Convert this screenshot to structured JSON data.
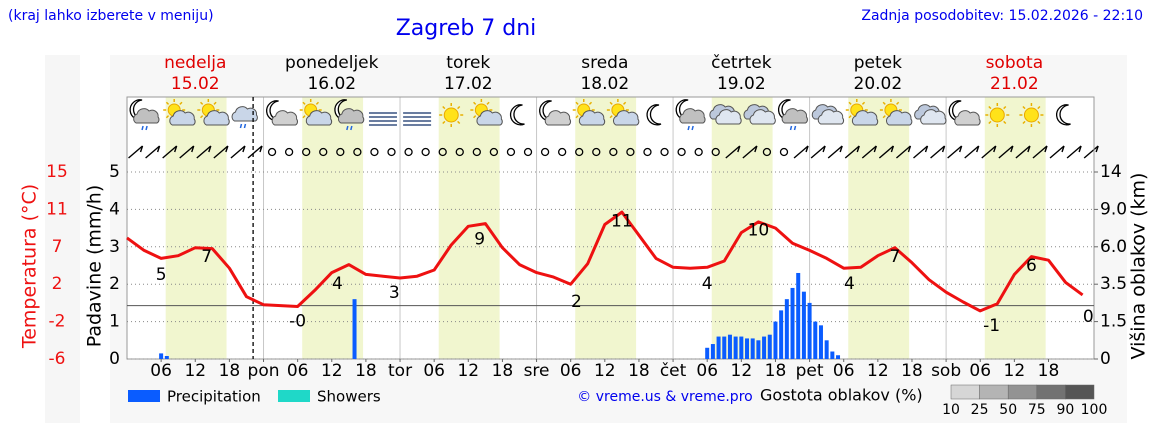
{
  "chart_data": {
    "type": "meteogram",
    "title": "Zagreb 7 dni",
    "note": "(kraj lahko izberete v meniju)",
    "updated": "Zadnja posodobitev: 15.02.2026 - 22:10",
    "credit": "© vreme.us & vreme.pro",
    "days": [
      {
        "name": "nedelja",
        "date": "15.02",
        "color": "#e00000"
      },
      {
        "name": "ponedeljek",
        "date": "16.02",
        "color": "#000000"
      },
      {
        "name": "torek",
        "date": "17.02",
        "color": "#000000"
      },
      {
        "name": "sreda",
        "date": "18.02",
        "color": "#000000"
      },
      {
        "name": "četrtek",
        "date": "19.02",
        "color": "#000000"
      },
      {
        "name": "petek",
        "date": "20.02",
        "color": "#000000"
      },
      {
        "name": "sobota",
        "date": "21.02",
        "color": "#e00000"
      }
    ],
    "xlim": [
      0,
      170
    ],
    "xticks": [
      {
        "value": 6,
        "label": "06"
      },
      {
        "value": 12,
        "label": "12"
      },
      {
        "value": 18,
        "label": "18"
      },
      {
        "value": 24,
        "label": "pon"
      },
      {
        "value": 30,
        "label": "06"
      },
      {
        "value": 36,
        "label": "12"
      },
      {
        "value": 42,
        "label": "18"
      },
      {
        "value": 48,
        "label": "tor"
      },
      {
        "value": 54,
        "label": "06"
      },
      {
        "value": 60,
        "label": "12"
      },
      {
        "value": 66,
        "label": "18"
      },
      {
        "value": 72,
        "label": "sre"
      },
      {
        "value": 78,
        "label": "06"
      },
      {
        "value": 84,
        "label": "12"
      },
      {
        "value": 90,
        "label": "18"
      },
      {
        "value": 96,
        "label": "čet"
      },
      {
        "value": 102,
        "label": "06"
      },
      {
        "value": 108,
        "label": "12"
      },
      {
        "value": 114,
        "label": "18"
      },
      {
        "value": 120,
        "label": "pet"
      },
      {
        "value": 126,
        "label": "06"
      },
      {
        "value": 132,
        "label": "12"
      },
      {
        "value": 138,
        "label": "18"
      },
      {
        "value": 144,
        "label": "sob"
      },
      {
        "value": 150,
        "label": "06"
      },
      {
        "value": 156,
        "label": "12"
      },
      {
        "value": 162,
        "label": "18"
      }
    ],
    "ylabel": "Padavine (mm/h)",
    "ylim": [
      0,
      5
    ],
    "yticks": [
      0,
      1,
      2,
      3,
      4,
      5
    ],
    "grid": true,
    "temperature": {
      "label": "Temperatura (°C)",
      "color": "#ee1111",
      "lim": [
        -6,
        15
      ],
      "ticks": [
        -6,
        {
          "value": -1.8,
          "label": "-2"
        },
        {
          "value": 2.4,
          "label": "2"
        },
        {
          "value": 6.6,
          "label": "7"
        },
        {
          "value": 10.8,
          "label": "11"
        },
        15
      ],
      "x": [
        0,
        3,
        6,
        9,
        12,
        15,
        18,
        21,
        24,
        27,
        30,
        33,
        36,
        39,
        42,
        45,
        48,
        51,
        54,
        57,
        60,
        63,
        66,
        69,
        72,
        75,
        78,
        81,
        84,
        87,
        90,
        93,
        96,
        99,
        102,
        105,
        108,
        111,
        114,
        117,
        120,
        123,
        126,
        129,
        132,
        135,
        138,
        141,
        144,
        147,
        150,
        153,
        156,
        159,
        162,
        165,
        168
      ],
      "values": [
        7.6,
        6.2,
        5.3,
        5.6,
        6.5,
        6.4,
        4.2,
        1.0,
        0.1,
        0.0,
        -0.1,
        1.7,
        3.7,
        4.6,
        3.5,
        3.3,
        3.1,
        3.3,
        4.0,
        6.8,
        8.9,
        9.2,
        6.5,
        4.6,
        3.7,
        3.2,
        2.4,
        4.7,
        9.1,
        10.5,
        7.9,
        5.3,
        4.3,
        4.2,
        4.3,
        5.0,
        8.2,
        9.4,
        8.7,
        7.0,
        6.2,
        5.3,
        4.2,
        4.3,
        5.6,
        6.5,
        4.8,
        2.9,
        1.5,
        0.4,
        -0.6,
        0.2,
        3.5,
        5.5,
        5.1,
        2.6,
        1.2
      ],
      "labels": [
        {
          "x": 6,
          "value": 5,
          "label": "5"
        },
        {
          "x": 14,
          "value": 7,
          "label": "7"
        },
        {
          "x": 30,
          "value": -0.2,
          "label": "-0"
        },
        {
          "x": 37,
          "value": 4,
          "label": "4"
        },
        {
          "x": 47,
          "value": 3,
          "label": "3"
        },
        {
          "x": 62,
          "value": 9,
          "label": "9"
        },
        {
          "x": 79,
          "value": 2,
          "label": "2"
        },
        {
          "x": 87,
          "value": 11,
          "label": "11"
        },
        {
          "x": 102,
          "value": 4,
          "label": "4"
        },
        {
          "x": 111,
          "value": 10,
          "label": "10"
        },
        {
          "x": 127,
          "value": 4,
          "label": "4"
        },
        {
          "x": 135,
          "value": 7,
          "label": "7"
        },
        {
          "x": 152,
          "value": -0.7,
          "label": "-1"
        },
        {
          "x": 159,
          "value": 6,
          "label": "6"
        },
        {
          "x": 169,
          "value": 0.3,
          "label": "0"
        }
      ]
    },
    "y2label": "Višina oblakov (km)",
    "y2lim": [
      0,
      14
    ],
    "y2scale": "piecewise",
    "y2ticks": [
      0,
      1.5,
      3.5,
      {
        "value": 6,
        "label": "6.0"
      },
      {
        "value": 9,
        "label": "9.0"
      },
      14
    ],
    "series": [
      {
        "name": "Precipitation",
        "color": "#0a5cff",
        "x": [
          6,
          7,
          40,
          102,
          103,
          104,
          105,
          106,
          107,
          108,
          109,
          110,
          111,
          112,
          113,
          114,
          115,
          116,
          117,
          118,
          119,
          120,
          121,
          122,
          123,
          124,
          125
        ],
        "values": [
          0.15,
          0.08,
          1.6,
          0.3,
          0.4,
          0.6,
          0.6,
          0.65,
          0.6,
          0.6,
          0.55,
          0.55,
          0.5,
          0.6,
          0.65,
          1.0,
          1.3,
          1.6,
          1.9,
          2.3,
          1.8,
          1.5,
          1.0,
          0.9,
          0.5,
          0.2,
          0.1
        ]
      },
      {
        "name": "Showers",
        "color": "#1fd8c8",
        "x": [],
        "values": []
      }
    ],
    "cloud_legend": {
      "title": "Gostota oblakov (%)",
      "levels": [
        10,
        25,
        50,
        75,
        90,
        100
      ],
      "colors": [
        "#d6d6d6",
        "#b4b4b4",
        "#939393",
        "#727272",
        "#555555"
      ]
    }
  }
}
